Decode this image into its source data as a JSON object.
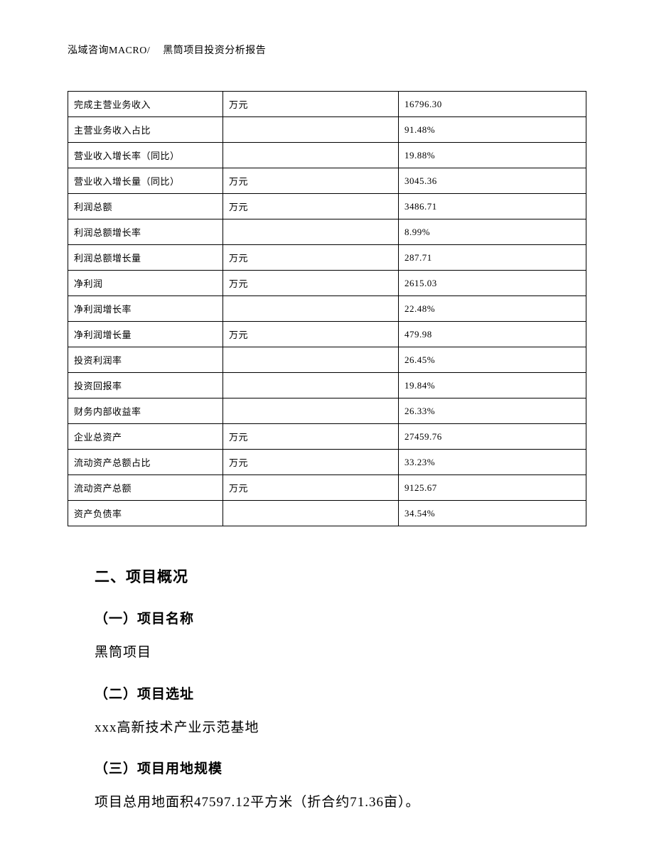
{
  "header": {
    "left": "泓域咨询MACRO/",
    "right": "黑筒项目投资分析报告"
  },
  "table": {
    "rows": [
      {
        "label": "完成主营业务收入",
        "unit": "万元",
        "value": "16796.30"
      },
      {
        "label": "主营业务收入占比",
        "unit": "",
        "value": "91.48%"
      },
      {
        "label": "营业收入增长率（同比）",
        "unit": "",
        "value": "19.88%"
      },
      {
        "label": "营业收入增长量（同比）",
        "unit": "万元",
        "value": "3045.36"
      },
      {
        "label": "利润总额",
        "unit": "万元",
        "value": "3486.71"
      },
      {
        "label": "利润总额增长率",
        "unit": "",
        "value": "8.99%"
      },
      {
        "label": "利润总额增长量",
        "unit": "万元",
        "value": "287.71"
      },
      {
        "label": "净利润",
        "unit": "万元",
        "value": "2615.03"
      },
      {
        "label": "净利润增长率",
        "unit": "",
        "value": "22.48%"
      },
      {
        "label": "净利润增长量",
        "unit": "万元",
        "value": "479.98"
      },
      {
        "label": "投资利润率",
        "unit": "",
        "value": "26.45%"
      },
      {
        "label": "投资回报率",
        "unit": "",
        "value": "19.84%"
      },
      {
        "label": "财务内部收益率",
        "unit": "",
        "value": "26.33%"
      },
      {
        "label": "企业总资产",
        "unit": "万元",
        "value": "27459.76"
      },
      {
        "label": "流动资产总额占比",
        "unit": "万元",
        "value": "33.23%"
      },
      {
        "label": "流动资产总额",
        "unit": "万元",
        "value": "9125.67"
      },
      {
        "label": "资产负债率",
        "unit": "",
        "value": "34.54%"
      }
    ]
  },
  "sections": {
    "h2": "二、项目概况",
    "s1": {
      "heading": "（一）项目名称",
      "text": "黑筒项目"
    },
    "s2": {
      "heading": "（二）项目选址",
      "text": "xxx高新技术产业示范基地"
    },
    "s3": {
      "heading": "（三）项目用地规模",
      "text": "项目总用地面积47597.12平方米（折合约71.36亩）。"
    }
  }
}
